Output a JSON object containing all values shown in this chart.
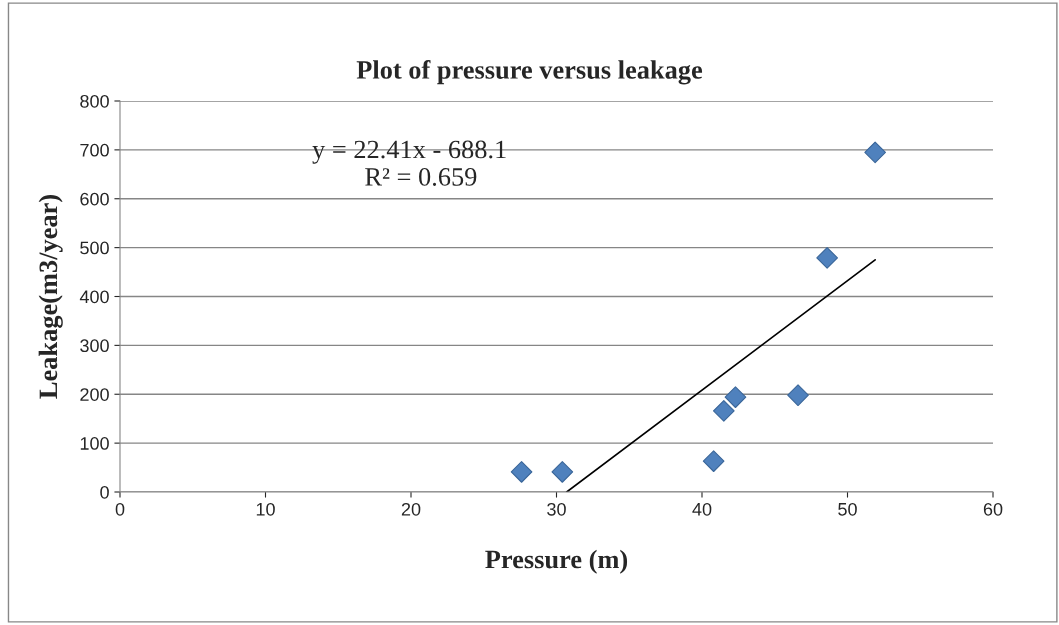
{
  "chart_data": {
    "type": "scatter",
    "title": "Plot of pressure versus leakage",
    "xlabel": "Pressure (m)",
    "ylabel": "Leakage(m3/year)",
    "series": [
      {
        "color": "#4f81bd",
        "marker": "diamond",
        "x": [
          27.6,
          30.4,
          40.8,
          41.5,
          42.3,
          46.6,
          48.6,
          51.9
        ],
        "values": [
          41,
          41,
          63,
          166,
          194,
          198,
          479,
          695
        ]
      },
      {
        "type": "line",
        "color": "#000000",
        "marker": "none",
        "line_style": "solid",
        "x": [
          30.7,
          51.9
        ],
        "values": [
          0,
          475
        ]
      }
    ],
    "annotations": [
      "y = 22.41x - 688.1",
      "R² = 0.659"
    ],
    "xlim": [
      0,
      60
    ],
    "xticks": [
      0,
      10,
      20,
      30,
      40,
      50,
      60
    ],
    "ylim": [
      0,
      800
    ],
    "yticks": [
      0,
      100,
      200,
      300,
      400,
      500,
      600,
      700,
      800
    ],
    "grid": "y",
    "legend": false
  }
}
